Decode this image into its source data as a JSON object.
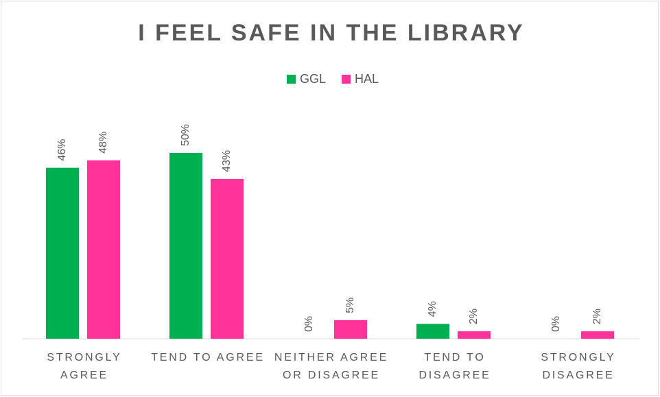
{
  "chart_data": {
    "type": "bar",
    "title": "I FEEL SAFE IN THE LIBRARY",
    "categories": [
      "STRONGLY AGREE",
      "TEND TO AGREE",
      "NEITHER AGREE OR DISAGREE",
      "TEND TO DISAGREE",
      "STRONGLY DISAGREE"
    ],
    "series": [
      {
        "name": "GGL",
        "color": "#00b050",
        "values": [
          46,
          50,
          0,
          4,
          0
        ],
        "value_labels": [
          "46%",
          "50%",
          "0%",
          "4%",
          "0%"
        ]
      },
      {
        "name": "HAL",
        "color": "#ff3399",
        "values": [
          48,
          43,
          5,
          2,
          2
        ],
        "value_labels": [
          "48%",
          "43%",
          "5%",
          "2%",
          "2%"
        ]
      }
    ],
    "legend": "top"
  }
}
